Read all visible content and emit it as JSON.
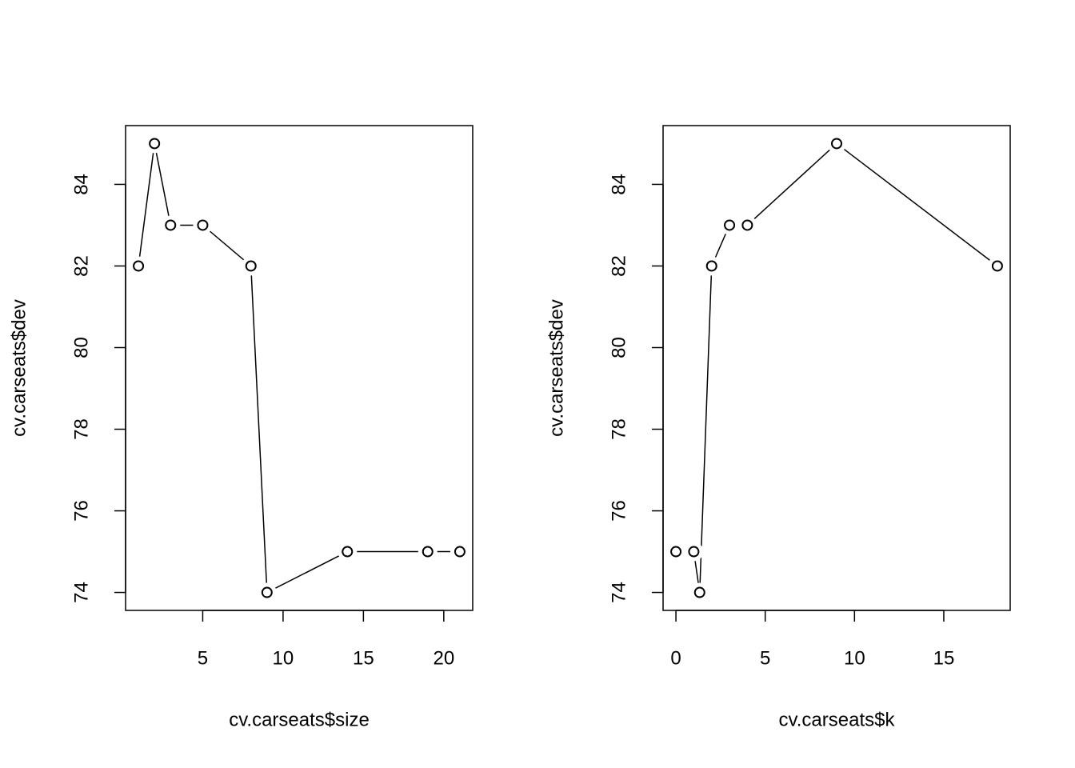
{
  "chart_data": [
    {
      "type": "line",
      "xlabel": "cv.carseats$size",
      "ylabel": "cv.carseats$dev",
      "x": [
        21,
        19,
        14,
        9,
        8,
        5,
        3,
        2,
        1
      ],
      "values": [
        75,
        75,
        75,
        74,
        82,
        83,
        83,
        85,
        82
      ],
      "xlim": [
        0.2,
        21.8
      ],
      "ylim": [
        73.56,
        85.44
      ],
      "xticks": [
        5,
        10,
        15,
        20
      ],
      "yticks": [
        74,
        76,
        78,
        80,
        82,
        84
      ],
      "color": "#000000"
    },
    {
      "type": "line",
      "xlabel": "cv.carseats$k",
      "ylabel": "cv.carseats$dev",
      "x": [
        0,
        1,
        1.33,
        2,
        3,
        4,
        9,
        18
      ],
      "values": [
        75,
        75,
        74,
        82,
        83,
        83,
        85,
        82
      ],
      "xlim": [
        -0.72,
        18.72
      ],
      "ylim": [
        73.56,
        85.44
      ],
      "xticks": [
        0,
        5,
        10,
        15
      ],
      "yticks": [
        74,
        76,
        78,
        80,
        82,
        84
      ],
      "color": "#000000"
    }
  ]
}
